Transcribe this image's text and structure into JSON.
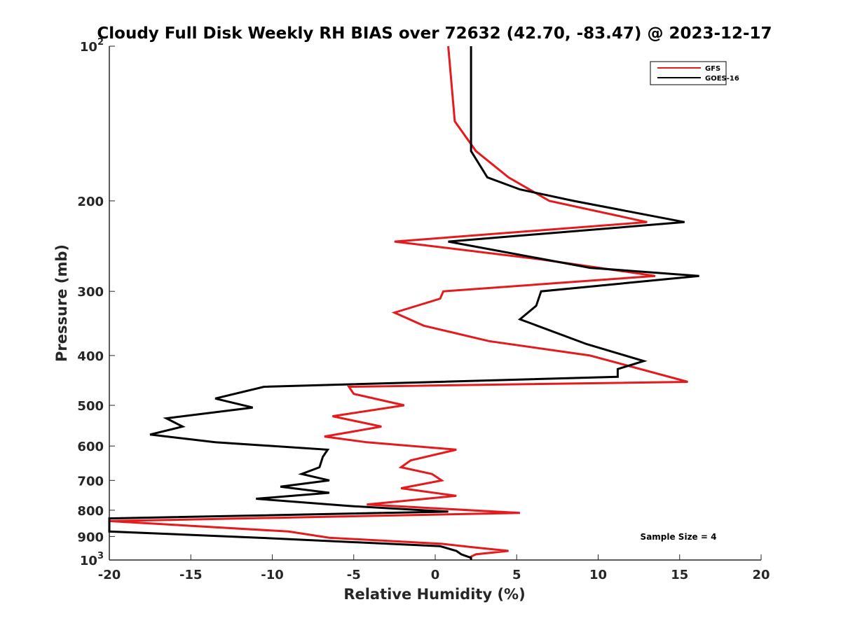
{
  "chart_data": {
    "type": "line",
    "title": "Cloudy Full Disk Weekly RH BIAS over 72632 (42.70, -83.47) @ 2023-12-17",
    "xlabel": "Relative Humidity (%)",
    "ylabel": "Pressure (mb)",
    "xlim": [
      -20,
      20
    ],
    "ylim": [
      100,
      1000
    ],
    "y_scale": "log",
    "y_reversed": true,
    "x_ticks": [
      -20,
      -15,
      -10,
      -5,
      0,
      5,
      10,
      15,
      20
    ],
    "x_tick_labels": [
      "-20",
      "-15",
      "-10",
      "-5",
      "0",
      "5",
      "10",
      "15",
      "20"
    ],
    "y_ticks": [
      100,
      200,
      300,
      400,
      500,
      600,
      700,
      800,
      900,
      1000
    ],
    "y_tick_labels": [
      {
        "base": "10",
        "exp": "2"
      },
      {
        "base": "200",
        "exp": ""
      },
      {
        "base": "300",
        "exp": ""
      },
      {
        "base": "400",
        "exp": ""
      },
      {
        "base": "500",
        "exp": ""
      },
      {
        "base": "600",
        "exp": ""
      },
      {
        "base": "700",
        "exp": ""
      },
      {
        "base": "800",
        "exp": ""
      },
      {
        "base": "900",
        "exp": ""
      },
      {
        "base": "10",
        "exp": "3"
      }
    ],
    "grid": false,
    "legend_position": "top-right",
    "annotation": "Sample Size = 4",
    "series": [
      {
        "name": "GFS",
        "color": "#e41a1c",
        "points": [
          [
            0.8,
            100
          ],
          [
            1.2,
            140
          ],
          [
            2.5,
            160
          ],
          [
            4.5,
            180
          ],
          [
            7.0,
            200
          ],
          [
            13.0,
            220
          ],
          [
            -2.5,
            240
          ],
          [
            6.5,
            260
          ],
          [
            13.5,
            280
          ],
          [
            0.5,
            300
          ],
          [
            0.3,
            310
          ],
          [
            -2.5,
            330
          ],
          [
            -0.7,
            350
          ],
          [
            3.3,
            375
          ],
          [
            9.5,
            400
          ],
          [
            15.5,
            450
          ],
          [
            -5.3,
            460
          ],
          [
            -5.0,
            475
          ],
          [
            -1.9,
            500
          ],
          [
            -6.3,
            525
          ],
          [
            -3.3,
            550
          ],
          [
            -6.8,
            575
          ],
          [
            -4.2,
            590
          ],
          [
            1.3,
            610
          ],
          [
            -1.5,
            640
          ],
          [
            -2.1,
            660
          ],
          [
            -0.2,
            680
          ],
          [
            0.4,
            700
          ],
          [
            -2.1,
            725
          ],
          [
            1.3,
            750
          ],
          [
            -4.2,
            780
          ],
          [
            -1.0,
            790
          ],
          [
            5.2,
            810
          ],
          [
            -20.0,
            840
          ],
          [
            -9.0,
            880
          ],
          [
            -6.5,
            905
          ],
          [
            0.4,
            930
          ],
          [
            2.4,
            945
          ],
          [
            4.5,
            960
          ],
          [
            2.5,
            975
          ],
          [
            2.2,
            985
          ],
          [
            2.2,
            1000
          ]
        ]
      },
      {
        "name": "GOES-16",
        "color": "#000000",
        "points": [
          [
            2.2,
            100
          ],
          [
            2.2,
            140
          ],
          [
            2.2,
            160
          ],
          [
            3.2,
            180
          ],
          [
            5.2,
            190
          ],
          [
            8.5,
            200
          ],
          [
            15.3,
            220
          ],
          [
            0.8,
            240
          ],
          [
            9.5,
            270
          ],
          [
            16.2,
            280
          ],
          [
            6.5,
            300
          ],
          [
            6.2,
            320
          ],
          [
            5.2,
            340
          ],
          [
            9.3,
            380
          ],
          [
            12.8,
            410
          ],
          [
            11.2,
            425
          ],
          [
            11.2,
            440
          ],
          [
            -10.5,
            460
          ],
          [
            -13.5,
            485
          ],
          [
            -11.2,
            505
          ],
          [
            -16.5,
            530
          ],
          [
            -15.5,
            550
          ],
          [
            -17.5,
            570
          ],
          [
            -13.5,
            590
          ],
          [
            -6.6,
            610
          ],
          [
            -6.9,
            630
          ],
          [
            -7.1,
            660
          ],
          [
            -8.2,
            680
          ],
          [
            -6.5,
            700
          ],
          [
            -9.5,
            720
          ],
          [
            -6.5,
            740
          ],
          [
            -11.0,
            760
          ],
          [
            -5.3,
            785
          ],
          [
            0.8,
            805
          ],
          [
            -20.0,
            830
          ],
          [
            -20.0,
            880
          ],
          [
            -10.8,
            905
          ],
          [
            0.3,
            940
          ],
          [
            1.3,
            960
          ],
          [
            1.6,
            975
          ],
          [
            2.2,
            990
          ],
          [
            2.2,
            1000
          ]
        ]
      }
    ]
  }
}
